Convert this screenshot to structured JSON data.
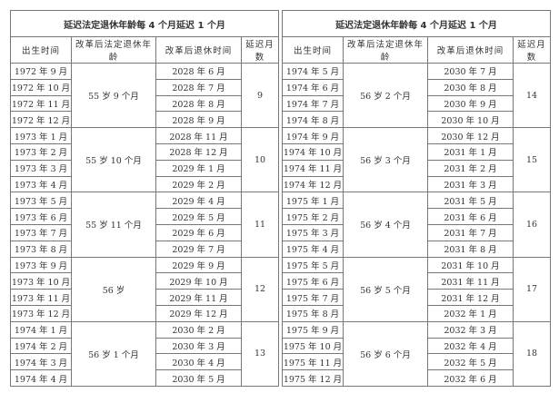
{
  "title": "延迟法定退休年龄每 4 个月延迟 1 个月",
  "headers": [
    "出生时间",
    "改革后法定退休年龄",
    "改革后退休时间",
    "延迟月数"
  ],
  "left": [
    {
      "age": "55 岁 9 个月",
      "delay": "9",
      "birth": [
        "1972 年 9 月",
        "1972 年 10 月",
        "1972 年 11 月",
        "1972 年 12 月"
      ],
      "retire": [
        "2028 年 6 月",
        "2028 年 7 月",
        "2028 年 8 月",
        "2028 年 9 月"
      ]
    },
    {
      "age": "55 岁 10 个月",
      "delay": "10",
      "birth": [
        "1973 年 1 月",
        "1973 年 2 月",
        "1973 年 3 月",
        "1973 年 4 月"
      ],
      "retire": [
        "2028 年 11 月",
        "2028 年 12 月",
        "2029 年 1 月",
        "2029 年 2 月"
      ]
    },
    {
      "age": "55 岁 11 个月",
      "delay": "11",
      "birth": [
        "1973 年 5 月",
        "1973 年 6 月",
        "1973 年 7 月",
        "1973 年 8 月"
      ],
      "retire": [
        "2029 年 4 月",
        "2029 年 5 月",
        "2029 年 6 月",
        "2029 年 7 月"
      ]
    },
    {
      "age": "56 岁",
      "delay": "12",
      "birth": [
        "1973 年 9 月",
        "1973 年 10 月",
        "1973 年 11 月",
        "1973 年 12 月"
      ],
      "retire": [
        "2029 年 9 月",
        "2029 年 10 月",
        "2029 年 11 月",
        "2029 年 12 月"
      ]
    },
    {
      "age": "56 岁 1 个月",
      "delay": "13",
      "birth": [
        "1974 年 1 月",
        "1974 年 2 月",
        "1974 年 3 月",
        "1974 年 4 月"
      ],
      "retire": [
        "2030 年 2 月",
        "2030 年 3 月",
        "2030 年 4 月",
        "2030 年 5 月"
      ]
    }
  ],
  "right": [
    {
      "age": "56 岁 2 个月",
      "delay": "14",
      "birth": [
        "1974 年 5 月",
        "1974 年 6 月",
        "1974 年 7 月",
        "1974 年 8 月"
      ],
      "retire": [
        "2030 年 7 月",
        "2030 年 8 月",
        "2030 年 9 月",
        "2030 年 10 月"
      ]
    },
    {
      "age": "56 岁 3 个月",
      "delay": "15",
      "birth": [
        "1974 年 9 月",
        "1974 年 10 月",
        "1974 年 11 月",
        "1974 年 12 月"
      ],
      "retire": [
        "2030 年 12 月",
        "2031 年 1 月",
        "2031 年 2 月",
        "2031 年 3 月"
      ]
    },
    {
      "age": "56 岁 4 个月",
      "delay": "16",
      "birth": [
        "1975 年 1 月",
        "1975 年 2 月",
        "1975 年 3 月",
        "1975 年 4 月"
      ],
      "retire": [
        "2031 年 5 月",
        "2031 年 6 月",
        "2031 年 7 月",
        "2031 年 8 月"
      ]
    },
    {
      "age": "56 岁 5 个月",
      "delay": "17",
      "birth": [
        "1975 年 5 月",
        "1975 年 6 月",
        "1975 年 7 月",
        "1975 年 8 月"
      ],
      "retire": [
        "2031 年 10 月",
        "2031 年 11 月",
        "2031 年 12 月",
        "2032 年 1 月"
      ]
    },
    {
      "age": "56 岁 6 个月",
      "delay": "18",
      "birth": [
        "1975 年 9 月",
        "1975 年 10 月",
        "1975 年 11 月",
        "1975 年 12 月"
      ],
      "retire": [
        "2032 年 3 月",
        "2032 年 4 月",
        "2032 年 5 月",
        "2032 年 6 月"
      ]
    }
  ]
}
